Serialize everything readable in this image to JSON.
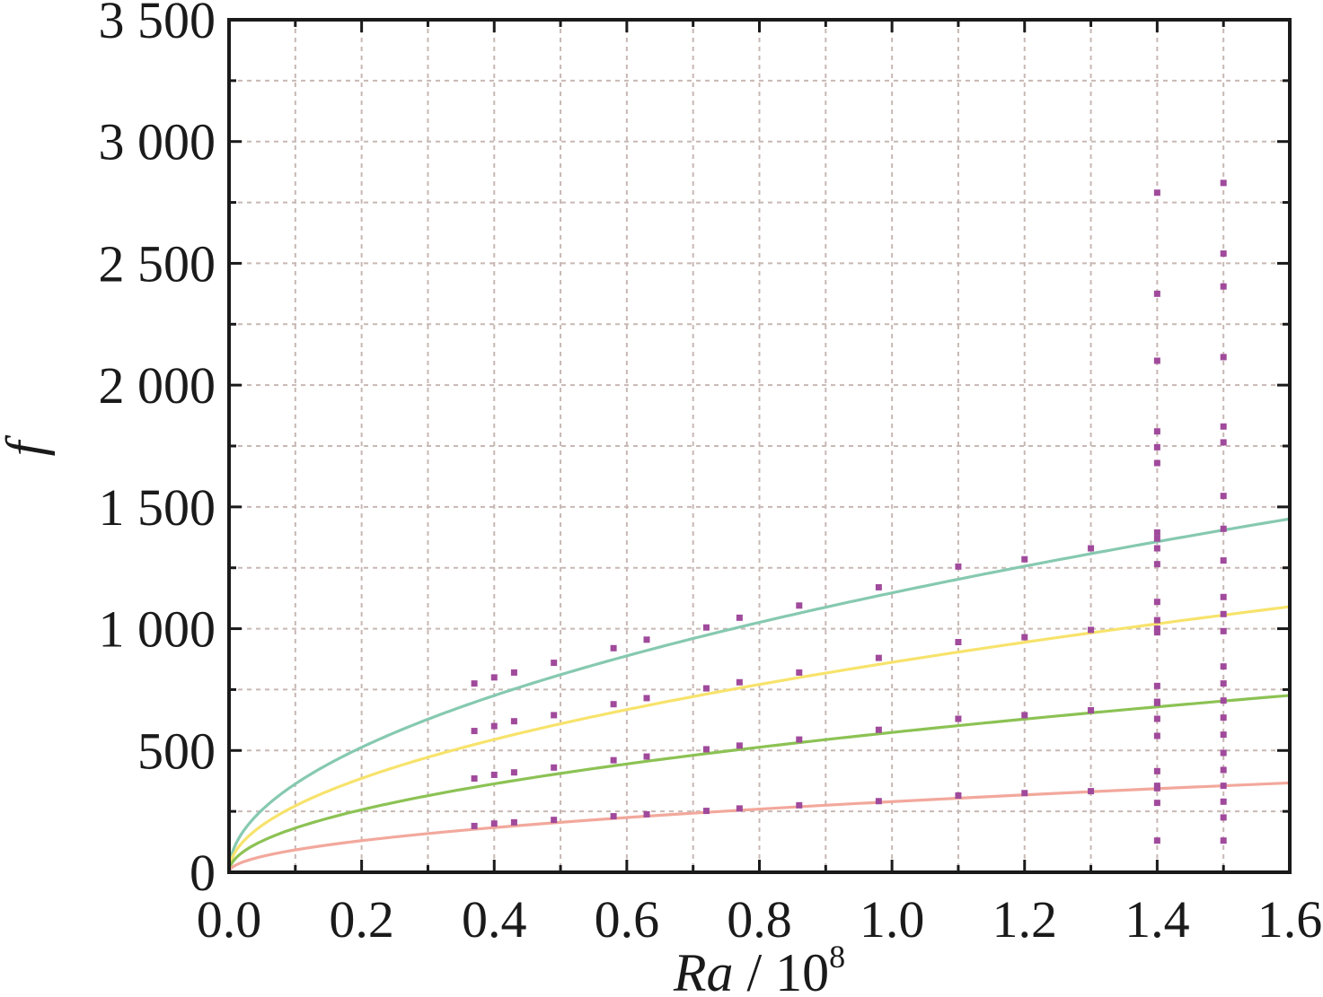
{
  "chart_data": {
    "type": "line",
    "xlabel": {
      "var": "Ra",
      "sep": " / ",
      "base": "10",
      "exp": "8"
    },
    "ylabel": "f",
    "xlim": [
      0,
      1.6
    ],
    "ylim": [
      0,
      3500
    ],
    "x_ticks": [
      0.0,
      0.2,
      0.4,
      0.6,
      0.8,
      1.0,
      1.2,
      1.4,
      1.6
    ],
    "x_tick_labels": [
      "0.0",
      "0.2",
      "0.4",
      "0.6",
      "0.8",
      "1.0",
      "1.2",
      "1.4",
      "1.6"
    ],
    "y_ticks": [
      0,
      500,
      1000,
      1500,
      2000,
      2500,
      3000,
      3500
    ],
    "y_tick_labels": [
      "0",
      "500",
      "1 000",
      "1 500",
      "2 000",
      "2 500",
      "3 000",
      "3 500"
    ],
    "x_minor_step": 0.1,
    "y_minor_step": 250,
    "grid": true,
    "grid_color": "#c8b8b4",
    "marker_color": "#a04a9c",
    "fit_curves": [
      {
        "color": "#86c9b0",
        "coef": 1147,
        "exponent": 0.5
      },
      {
        "color": "#f7e36c",
        "coef": 862,
        "exponent": 0.5
      },
      {
        "color": "#8cc254",
        "coef": 574,
        "exponent": 0.5
      },
      {
        "color": "#f2a89c",
        "coef": 290,
        "exponent": 0.5
      }
    ],
    "series": [
      {
        "x": [
          0.37,
          0.4,
          0.43,
          0.49,
          0.58,
          0.63,
          0.72,
          0.77,
          0.86,
          0.98,
          1.1,
          1.2,
          1.3
        ],
        "y": [
          775,
          800,
          820,
          860,
          920,
          955,
          1005,
          1045,
          1095,
          1170,
          1255,
          1285,
          1330
        ]
      },
      {
        "x": [
          0.37,
          0.4,
          0.43,
          0.49,
          0.58,
          0.63,
          0.72,
          0.77,
          0.86,
          0.98,
          1.1,
          1.2,
          1.3
        ],
        "y": [
          580,
          600,
          620,
          645,
          690,
          715,
          755,
          780,
          820,
          880,
          945,
          965,
          995
        ]
      },
      {
        "x": [
          0.37,
          0.4,
          0.43,
          0.49,
          0.58,
          0.63,
          0.72,
          0.77,
          0.86,
          0.98,
          1.1,
          1.2,
          1.3
        ],
        "y": [
          385,
          400,
          410,
          430,
          460,
          475,
          505,
          520,
          545,
          585,
          630,
          645,
          665
        ]
      },
      {
        "x": [
          0.37,
          0.4,
          0.43,
          0.49,
          0.58,
          0.63,
          0.72,
          0.77,
          0.86,
          0.98,
          1.1,
          1.2,
          1.3
        ],
        "y": [
          190,
          200,
          205,
          215,
          230,
          238,
          252,
          262,
          275,
          292,
          315,
          325,
          333
        ]
      },
      {
        "x": [
          1.4,
          1.4,
          1.4,
          1.4,
          1.4,
          1.4,
          1.4,
          1.4,
          1.4,
          1.4,
          1.4,
          1.4,
          1.4,
          1.4,
          1.4,
          1.4,
          1.4,
          1.4,
          1.4,
          1.4,
          1.4,
          1.4,
          1.4,
          1.4
        ],
        "y": [
          130,
          285,
          345,
          415,
          560,
          630,
          695,
          765,
          985,
          1035,
          1110,
          1265,
          1330,
          1395,
          1680,
          1745,
          1810,
          2100,
          2375,
          2790,
          355,
          1000,
          1370,
          700
        ]
      },
      {
        "x": [
          1.5,
          1.5,
          1.5,
          1.5,
          1.5,
          1.5,
          1.5,
          1.5,
          1.5,
          1.5,
          1.5,
          1.5,
          1.5,
          1.5,
          1.5,
          1.5,
          1.5,
          1.5,
          1.5,
          1.5,
          1.5,
          1.5,
          1.5
        ],
        "y": [
          130,
          225,
          290,
          355,
          420,
          490,
          565,
          635,
          705,
          775,
          845,
          990,
          1060,
          1130,
          1280,
          1410,
          1545,
          1765,
          1830,
          2115,
          2405,
          2540,
          2830
        ]
      }
    ]
  }
}
